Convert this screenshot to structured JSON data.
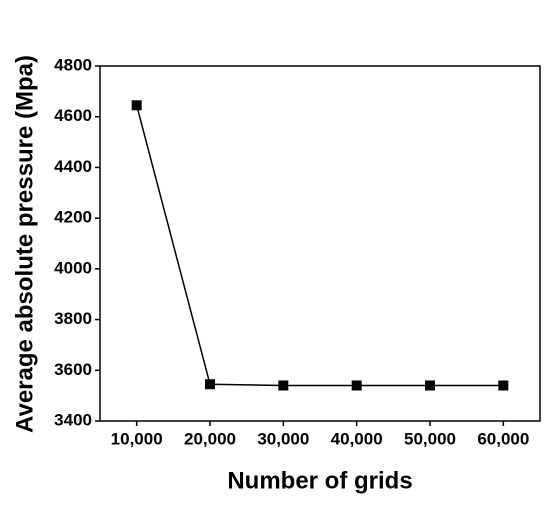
{
  "chart_data": {
    "type": "line",
    "x_label": "Number of grids",
    "y_label": "Average absolute pressure (Mpa)",
    "x": [
      10000,
      20000,
      30000,
      40000,
      50000,
      60000
    ],
    "series": [
      {
        "color": "#000000",
        "values": [
          4645,
          3545,
          3540,
          3540,
          3540,
          3540
        ]
      }
    ],
    "xlim": [
      5000,
      65000
    ],
    "xticks": [
      {
        "value": 10000,
        "label": "10,000"
      },
      {
        "value": 20000,
        "label": "20,000"
      },
      {
        "value": 30000,
        "label": "30,000"
      },
      {
        "value": 40000,
        "label": "40,000"
      },
      {
        "value": 50000,
        "label": "50,000"
      },
      {
        "value": 60000,
        "label": "60,000"
      }
    ],
    "ylim": [
      3400,
      4800
    ],
    "yticks": [
      3400,
      3600,
      3800,
      4000,
      4200,
      4400,
      4600,
      4800
    ],
    "grid": false
  }
}
